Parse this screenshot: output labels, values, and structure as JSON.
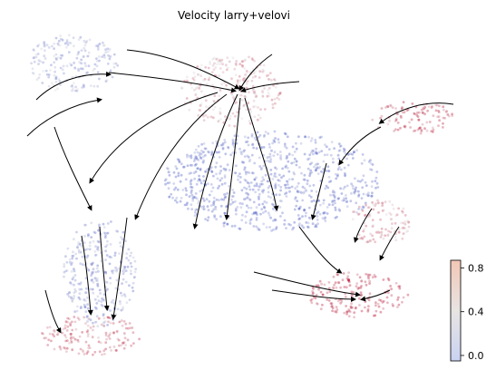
{
  "chart_data": {
    "type": "scatter",
    "title": "Velocity larry+velovi",
    "xlabel": "",
    "ylabel": "",
    "colorbar": {
      "colormap": "coolwarm",
      "range": [
        -0.05,
        0.87
      ],
      "ticks": [
        0.0,
        0.4,
        0.8
      ],
      "tick_labels": [
        "0.0",
        "0.4",
        "0.8"
      ],
      "colors": [
        "#3b4cc0",
        "#dddddd",
        "#b40426"
      ]
    },
    "overlay": "velocity streamlines with arrowheads",
    "cluster_mean_velocity": [
      {
        "region": "top-left lobe",
        "value": 0.22
      },
      {
        "region": "top hub",
        "value": 0.55
      },
      {
        "region": "right arm",
        "value": 0.72
      },
      {
        "region": "center band",
        "value": 0.05
      },
      {
        "region": "lower-left stalk",
        "value": 0.15
      },
      {
        "region": "bottom-left tip",
        "value": 0.68
      },
      {
        "region": "right middle lobe",
        "value": 0.6
      },
      {
        "region": "bottom-right tip",
        "value": 0.82
      }
    ]
  }
}
